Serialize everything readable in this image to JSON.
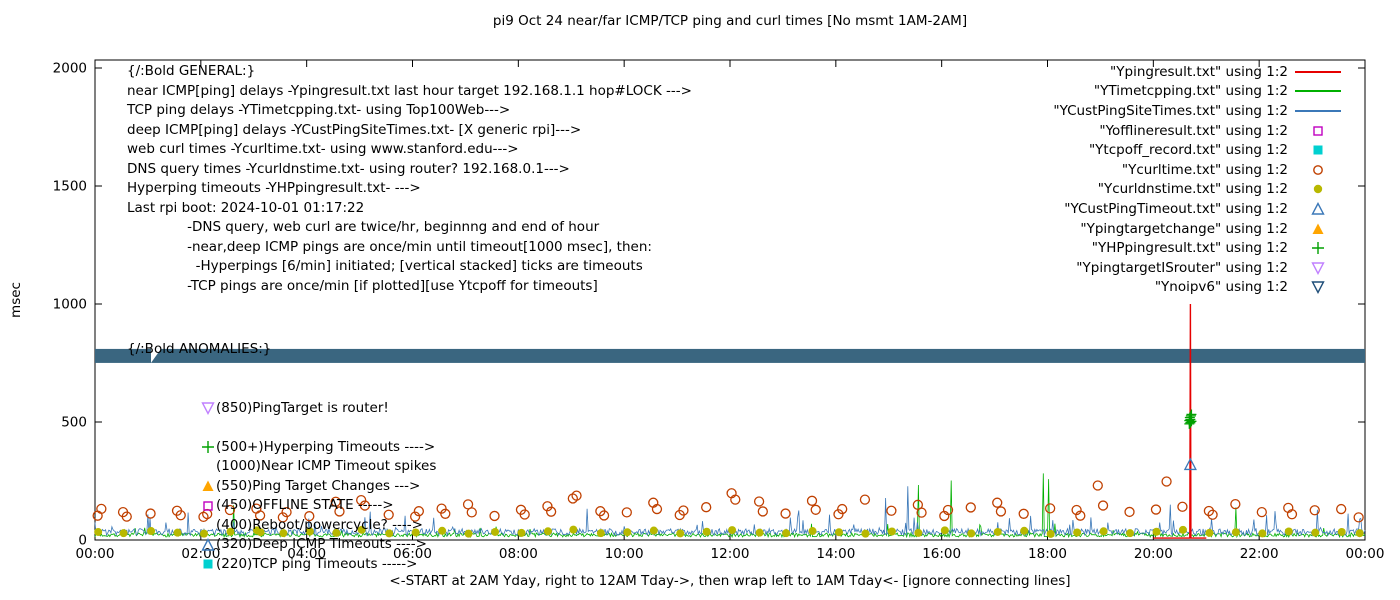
{
  "title": "pi9 Oct 24  near/far ICMP/TCP ping and curl times [No msmt 1AM-2AM]",
  "xlabel": "<-START at 2AM Yday, right to 12AM Tday->, then wrap left to 1AM Tday<- [ignore connecting lines]",
  "ylabel": "msec",
  "colors": {
    "near_icmp": "#e60000",
    "tcp_ping": "#00b000",
    "deep_icmp": "#3b78b8",
    "offline": "#c000c0",
    "tcpoff": "#00d0d0",
    "curl": "#c04000",
    "dns": "#b8b800",
    "deep_timeout": "#3b78b8",
    "target_change": "#ffa500",
    "hyperping": "#00a000",
    "target_is_router": "#c080ff",
    "noipv6_band": "#3a6680",
    "noipv6_marker": "#1f4e79"
  },
  "legend": [
    {
      "label": "\"Ypingresult.txt\" using 1:2",
      "sample": "line",
      "color": "#e60000"
    },
    {
      "label": "\"YTimetcpping.txt\" using 1:2",
      "sample": "line",
      "color": "#00b000"
    },
    {
      "label": "\"YCustPingSiteTimes.txt\" using 1:2",
      "sample": "line",
      "color": "#3b78b8"
    },
    {
      "label": "\"Yofflineresult.txt\" using 1:2",
      "sample": "square-open",
      "color": "#c000c0"
    },
    {
      "label": "\"Ytcpoff_record.txt\" using 1:2",
      "sample": "square-filled",
      "color": "#00d0d0"
    },
    {
      "label": "\"Ycurltime.txt\" using 1:2",
      "sample": "circle-open",
      "color": "#c04000"
    },
    {
      "label": "\"Ycurldnstime.txt\" using 1:2",
      "sample": "circle-filled",
      "color": "#b8b800"
    },
    {
      "label": "\"YCustPingTimeout.txt\" using 1:2",
      "sample": "triangle-up-open",
      "color": "#3b78b8"
    },
    {
      "label": "\"Ypingtargetchange\" using 1:2",
      "sample": "triangle-up-filled",
      "color": "#ffa500"
    },
    {
      "label": "\"YHPpingresult.txt\" using 1:2",
      "sample": "plus",
      "color": "#00a000"
    },
    {
      "label": "\"YpingtargetISrouter\" using 1:2",
      "sample": "triangle-down-open",
      "color": "#c080ff"
    },
    {
      "label": "\"Ynoipv6\" using 1:2",
      "sample": "triangle-down-open",
      "color": "#1f4e79"
    }
  ],
  "annotations": {
    "general": [
      "{/:Bold GENERAL:}",
      "near ICMP[ping] delays -Ypingresult.txt last hour target 192.168.1.1 hop#LOCK --->",
      "TCP ping delays -YTimetcpping.txt- using Top100Web--->",
      "deep ICMP[ping] delays -YCustPingSiteTimes.txt- [X generic rpi]--->",
      "web curl times -Ycurltime.txt- using www.stanford.edu--->",
      "DNS query times -Ycurldnstime.txt- using router? 192.168.0.1--->",
      "Hyperping timeouts -YHPpingresult.txt- --->",
      "Last rpi boot: 2024-10-01 01:17:22",
      "              -DNS query, web curl are twice/hr, beginnng and end of hour",
      "              -near,deep ICMP pings are once/min until timeout[1000 msec], then:",
      "                -Hyperpings [6/min] initiated; [vertical stacked] ticks are timeouts",
      "              -TCP pings are once/min [if plotted][use Ytcpoff for timeouts]"
    ],
    "anomalies_header": "{/:Bold ANOMALIES:}",
    "anomalies": [
      {
        "marker": "triangle-down-open",
        "color": "#c080ff",
        "text": "(850)PingTarget is router!"
      },
      {
        "marker": "",
        "color": "",
        "text": ""
      },
      {
        "marker": "plus",
        "color": "#00a000",
        "text": "(500+)Hyperping Timeouts ---->"
      },
      {
        "marker": "",
        "color": "",
        "text": "(1000)Near ICMP Timeout spikes"
      },
      {
        "marker": "triangle-up-filled",
        "color": "#ffa500",
        "text": "(550)Ping Target Changes --->"
      },
      {
        "marker": "square-open",
        "color": "#c000c0",
        "text": "(450)OFFLINE STATE ----->"
      },
      {
        "marker": "",
        "color": "",
        "text": "(400)Reboot/powercycle? ---->"
      },
      {
        "marker": "triangle-up-open",
        "color": "#3b78b8",
        "text": "(320)Deep ICMP Timeouts ---->"
      },
      {
        "marker": "square-filled",
        "color": "#00d0d0",
        "text": "(220)TCP ping Timeouts ----->"
      }
    ]
  },
  "chart_data": {
    "type": "line",
    "title": "pi9 Oct 24  near/far ICMP/TCP ping and curl times [No msmt 1AM-2AM]",
    "xlabel": "<-START at 2AM Yday, right to 12AM Tday->, then wrap left to 1AM Tday<- [ignore connecting lines]",
    "ylabel": "msec",
    "x_axis": {
      "min_hour": 0,
      "max_hour": 24,
      "ticks": [
        "00:00",
        "02:00",
        "04:00",
        "06:00",
        "08:00",
        "10:00",
        "12:00",
        "14:00",
        "16:00",
        "18:00",
        "20:00",
        "22:00",
        "00:00"
      ]
    },
    "y_axis": {
      "min": 0,
      "max": 2034,
      "ticks": [
        0,
        500,
        1000,
        1500,
        2000
      ]
    },
    "series": [
      {
        "name": "Ypingresult.txt",
        "style": "segments",
        "color": "#e60000",
        "points": [
          [
            20.0,
            8
          ],
          [
            20.69,
            8
          ],
          [
            20.7,
            1000
          ],
          [
            20.71,
            8
          ],
          [
            21.0,
            8
          ]
        ]
      },
      {
        "name": "YTimetcpping.txt",
        "style": "noisy-line",
        "color": "#00b000",
        "base": 13,
        "noise": 17,
        "spike_prob": 0.02,
        "spike_max": 45,
        "seed": 7,
        "spikes": [
          [
            2.62,
            148
          ],
          [
            15.55,
            233
          ],
          [
            16.17,
            252
          ],
          [
            17.92,
            282
          ],
          [
            18.02,
            258
          ],
          [
            21.55,
            138
          ]
        ]
      },
      {
        "name": "YCustPingSiteTimes.txt",
        "style": "noisy-line",
        "color": "#3b78b8",
        "base": 20,
        "noise": 28,
        "spike_prob": 0.05,
        "spike_max": 75,
        "seed": 3,
        "spikes": [
          [
            5.2,
            120
          ],
          [
            9.3,
            132
          ],
          [
            13.3,
            125
          ],
          [
            14.93,
            178
          ],
          [
            15.35,
            228
          ],
          [
            20.32,
            150
          ],
          [
            22.3,
            122
          ],
          [
            23.1,
            128
          ]
        ]
      },
      {
        "name": "Ycurltime.txt",
        "style": "points",
        "marker": "circle-open",
        "color": "#c04000",
        "points": [
          [
            0.05,
            103
          ],
          [
            0.12,
            132
          ],
          [
            0.53,
            118
          ],
          [
            0.6,
            99
          ],
          [
            1.05,
            112
          ],
          [
            1.55,
            124
          ],
          [
            1.62,
            105
          ],
          [
            2.05,
            98
          ],
          [
            2.12,
            110
          ],
          [
            2.55,
            127
          ],
          [
            3.05,
            133
          ],
          [
            3.12,
            104
          ],
          [
            3.55,
            96
          ],
          [
            3.62,
            118
          ],
          [
            4.05,
            101
          ],
          [
            4.55,
            162
          ],
          [
            4.62,
            121
          ],
          [
            5.03,
            169
          ],
          [
            5.1,
            146
          ],
          [
            5.55,
            107
          ],
          [
            6.05,
            99
          ],
          [
            6.12,
            122
          ],
          [
            6.55,
            133
          ],
          [
            6.62,
            111
          ],
          [
            7.05,
            151
          ],
          [
            7.12,
            117
          ],
          [
            7.55,
            102
          ],
          [
            8.05,
            128
          ],
          [
            8.12,
            108
          ],
          [
            8.55,
            143
          ],
          [
            8.62,
            120
          ],
          [
            9.03,
            176
          ],
          [
            9.1,
            188
          ],
          [
            9.55,
            122
          ],
          [
            9.62,
            104
          ],
          [
            10.05,
            117
          ],
          [
            10.55,
            158
          ],
          [
            10.62,
            131
          ],
          [
            11.05,
            106
          ],
          [
            11.12,
            125
          ],
          [
            11.55,
            139
          ],
          [
            12.03,
            198
          ],
          [
            12.1,
            171
          ],
          [
            12.55,
            163
          ],
          [
            12.62,
            121
          ],
          [
            13.05,
            112
          ],
          [
            13.55,
            166
          ],
          [
            13.62,
            128
          ],
          [
            14.05,
            109
          ],
          [
            14.12,
            131
          ],
          [
            14.55,
            171
          ],
          [
            15.05,
            124
          ],
          [
            15.55,
            149
          ],
          [
            15.62,
            116
          ],
          [
            16.05,
            102
          ],
          [
            16.12,
            127
          ],
          [
            16.55,
            138
          ],
          [
            17.05,
            158
          ],
          [
            17.12,
            121
          ],
          [
            17.55,
            111
          ],
          [
            18.05,
            134
          ],
          [
            18.55,
            127
          ],
          [
            18.62,
            103
          ],
          [
            18.95,
            231
          ],
          [
            19.05,
            146
          ],
          [
            19.55,
            119
          ],
          [
            20.05,
            129
          ],
          [
            20.25,
            248
          ],
          [
            20.55,
            141
          ],
          [
            21.05,
            123
          ],
          [
            21.12,
            107
          ],
          [
            21.55,
            152
          ],
          [
            22.05,
            118
          ],
          [
            22.55,
            136
          ],
          [
            22.62,
            109
          ],
          [
            23.05,
            126
          ],
          [
            23.55,
            131
          ],
          [
            23.88,
            96
          ]
        ]
      },
      {
        "name": "Ycurldnstime.txt",
        "style": "points",
        "marker": "circle-filled",
        "color": "#b8b800",
        "points": [
          [
            0.06,
            34
          ],
          [
            0.54,
            29
          ],
          [
            1.06,
            38
          ],
          [
            1.56,
            31
          ],
          [
            2.06,
            27
          ],
          [
            2.56,
            35
          ],
          [
            3.06,
            41
          ],
          [
            3.13,
            33
          ],
          [
            3.56,
            29
          ],
          [
            4.06,
            36
          ],
          [
            4.56,
            30
          ],
          [
            5.04,
            43
          ],
          [
            5.56,
            28
          ],
          [
            6.06,
            32
          ],
          [
            6.56,
            39
          ],
          [
            7.06,
            27
          ],
          [
            7.56,
            34
          ],
          [
            8.06,
            30
          ],
          [
            8.56,
            37
          ],
          [
            9.04,
            44
          ],
          [
            9.56,
            29
          ],
          [
            10.06,
            33
          ],
          [
            10.56,
            40
          ],
          [
            11.06,
            28
          ],
          [
            11.56,
            35
          ],
          [
            12.04,
            42
          ],
          [
            12.56,
            31
          ],
          [
            13.06,
            29
          ],
          [
            13.56,
            38
          ],
          [
            14.06,
            33
          ],
          [
            14.56,
            27
          ],
          [
            15.06,
            36
          ],
          [
            15.56,
            30
          ],
          [
            16.06,
            41
          ],
          [
            16.56,
            28
          ],
          [
            17.06,
            34
          ],
          [
            17.56,
            39
          ],
          [
            18.06,
            26
          ],
          [
            18.56,
            32
          ],
          [
            19.06,
            37
          ],
          [
            19.56,
            29
          ],
          [
            20.06,
            35
          ],
          [
            20.56,
            43
          ],
          [
            21.06,
            30
          ],
          [
            21.56,
            33
          ],
          [
            22.06,
            28
          ],
          [
            22.56,
            36
          ],
          [
            23.06,
            31
          ],
          [
            23.56,
            34
          ],
          [
            23.9,
            29
          ]
        ]
      },
      {
        "name": "YHPpingresult.txt",
        "style": "points",
        "marker": "plus",
        "color": "#00a000",
        "points": [
          [
            20.68,
            492
          ],
          [
            20.68,
            506
          ],
          [
            20.69,
            519
          ],
          [
            20.7,
            497
          ],
          [
            20.7,
            511
          ],
          [
            20.71,
            526
          ],
          [
            20.72,
            503
          ],
          [
            20.72,
            532
          ]
        ]
      },
      {
        "name": "YCustPingTimeout.txt",
        "style": "points",
        "marker": "triangle-up-open",
        "color": "#3b78b8",
        "points": [
          [
            20.7,
            318
          ]
        ]
      },
      {
        "name": "Ynoipv6",
        "style": "band",
        "color": "#3a6680",
        "y": 780,
        "x_start": 0,
        "x_end": 24
      }
    ]
  }
}
